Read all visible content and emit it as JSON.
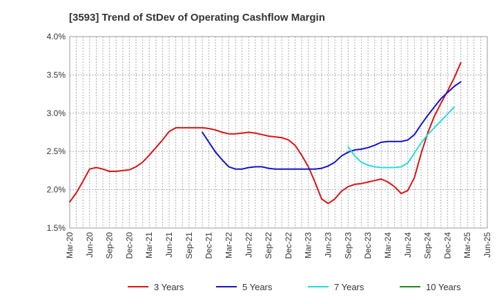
{
  "chart_data": {
    "type": "line",
    "title": "[3593]  Trend of StDev of Operating Cashflow Margin",
    "xlabel": "",
    "ylabel": "",
    "ylim": [
      1.5,
      4.0
    ],
    "y_ticks": [
      "1.5%",
      "2.0%",
      "2.5%",
      "3.0%",
      "3.5%",
      "4.0%"
    ],
    "y_tick_values": [
      1.5,
      2.0,
      2.5,
      3.0,
      3.5,
      4.0
    ],
    "x_ticks": [
      "Mar-20",
      "Jun-20",
      "Sep-20",
      "Dec-20",
      "Mar-21",
      "Jun-21",
      "Sep-21",
      "Dec-21",
      "Mar-22",
      "Jun-22",
      "Sep-22",
      "Dec-22",
      "Mar-23",
      "Jun-23",
      "Sep-23",
      "Dec-23",
      "Mar-24",
      "Jun-24",
      "Sep-24",
      "Dec-24",
      "Mar-25",
      "Jun-25"
    ],
    "grid": true,
    "legend_position": "bottom",
    "series": [
      {
        "name": "3 Years",
        "color": "#dd1111",
        "points": [
          [
            "Mar-20",
            1.84
          ],
          [
            "Apr-20",
            1.96
          ],
          [
            "May-20",
            2.11
          ],
          [
            "Jun-20",
            2.27
          ],
          [
            "Jul-20",
            2.29
          ],
          [
            "Aug-20",
            2.27
          ],
          [
            "Sep-20",
            2.24
          ],
          [
            "Oct-20",
            2.24
          ],
          [
            "Nov-20",
            2.25
          ],
          [
            "Dec-20",
            2.26
          ],
          [
            "Jan-21",
            2.3
          ],
          [
            "Feb-21",
            2.36
          ],
          [
            "Mar-21",
            2.45
          ],
          [
            "Apr-21",
            2.55
          ],
          [
            "May-21",
            2.65
          ],
          [
            "Jun-21",
            2.76
          ],
          [
            "Jul-21",
            2.81
          ],
          [
            "Aug-21",
            2.81
          ],
          [
            "Sep-21",
            2.81
          ],
          [
            "Oct-21",
            2.81
          ],
          [
            "Nov-21",
            2.81
          ],
          [
            "Dec-21",
            2.8
          ],
          [
            "Jan-22",
            2.78
          ],
          [
            "Feb-22",
            2.75
          ],
          [
            "Mar-22",
            2.73
          ],
          [
            "Apr-22",
            2.73
          ],
          [
            "May-22",
            2.74
          ],
          [
            "Jun-22",
            2.75
          ],
          [
            "Jul-22",
            2.74
          ],
          [
            "Aug-22",
            2.72
          ],
          [
            "Sep-22",
            2.7
          ],
          [
            "Oct-22",
            2.69
          ],
          [
            "Nov-22",
            2.68
          ],
          [
            "Dec-22",
            2.65
          ],
          [
            "Jan-23",
            2.58
          ],
          [
            "Feb-23",
            2.45
          ],
          [
            "Mar-23",
            2.3
          ],
          [
            "Apr-23",
            2.1
          ],
          [
            "May-23",
            1.88
          ],
          [
            "Jun-23",
            1.82
          ],
          [
            "Jul-23",
            1.88
          ],
          [
            "Aug-23",
            1.98
          ],
          [
            "Sep-23",
            2.04
          ],
          [
            "Oct-23",
            2.07
          ],
          [
            "Nov-23",
            2.08
          ],
          [
            "Dec-23",
            2.1
          ],
          [
            "Jan-24",
            2.12
          ],
          [
            "Feb-24",
            2.14
          ],
          [
            "Mar-24",
            2.1
          ],
          [
            "Apr-24",
            2.04
          ],
          [
            "May-24",
            1.95
          ],
          [
            "Jun-24",
            1.99
          ],
          [
            "Jul-24",
            2.16
          ],
          [
            "Aug-24",
            2.47
          ],
          [
            "Sep-24",
            2.74
          ],
          [
            "Oct-24",
            2.96
          ],
          [
            "Nov-24",
            3.13
          ],
          [
            "Dec-24",
            3.29
          ],
          [
            "Jan-25",
            3.46
          ],
          [
            "Feb-25",
            3.66
          ]
        ]
      },
      {
        "name": "5 Years",
        "color": "#1111cc",
        "points": [
          [
            "Nov-21",
            2.75
          ],
          [
            "Dec-21",
            2.62
          ],
          [
            "Jan-22",
            2.49
          ],
          [
            "Feb-22",
            2.39
          ],
          [
            "Mar-22",
            2.3
          ],
          [
            "Apr-22",
            2.27
          ],
          [
            "May-22",
            2.27
          ],
          [
            "Jun-22",
            2.29
          ],
          [
            "Jul-22",
            2.3
          ],
          [
            "Aug-22",
            2.3
          ],
          [
            "Sep-22",
            2.28
          ],
          [
            "Oct-22",
            2.27
          ],
          [
            "Nov-22",
            2.27
          ],
          [
            "Dec-22",
            2.27
          ],
          [
            "Jan-23",
            2.27
          ],
          [
            "Feb-23",
            2.27
          ],
          [
            "Mar-23",
            2.27
          ],
          [
            "Apr-23",
            2.27
          ],
          [
            "May-23",
            2.28
          ],
          [
            "Jun-23",
            2.31
          ],
          [
            "Jul-23",
            2.36
          ],
          [
            "Aug-23",
            2.44
          ],
          [
            "Sep-23",
            2.49
          ],
          [
            "Oct-23",
            2.52
          ],
          [
            "Nov-23",
            2.53
          ],
          [
            "Dec-23",
            2.55
          ],
          [
            "Jan-24",
            2.58
          ],
          [
            "Feb-24",
            2.62
          ],
          [
            "Mar-24",
            2.63
          ],
          [
            "Apr-24",
            2.63
          ],
          [
            "May-24",
            2.63
          ],
          [
            "Jun-24",
            2.65
          ],
          [
            "Jul-24",
            2.72
          ],
          [
            "Aug-24",
            2.85
          ],
          [
            "Sep-24",
            2.97
          ],
          [
            "Oct-24",
            3.08
          ],
          [
            "Nov-24",
            3.19
          ],
          [
            "Dec-24",
            3.27
          ],
          [
            "Jan-25",
            3.35
          ],
          [
            "Feb-25",
            3.41
          ]
        ]
      },
      {
        "name": "7 Years",
        "color": "#22dddd",
        "points": [
          [
            "Sep-23",
            2.56
          ],
          [
            "Oct-23",
            2.44
          ],
          [
            "Nov-23",
            2.36
          ],
          [
            "Dec-23",
            2.32
          ],
          [
            "Jan-24",
            2.3
          ],
          [
            "Feb-24",
            2.29
          ],
          [
            "Mar-24",
            2.29
          ],
          [
            "Apr-24",
            2.29
          ],
          [
            "May-24",
            2.3
          ],
          [
            "Jun-24",
            2.35
          ],
          [
            "Jul-24",
            2.48
          ],
          [
            "Aug-24",
            2.61
          ],
          [
            "Sep-24",
            2.72
          ],
          [
            "Oct-24",
            2.81
          ],
          [
            "Nov-24",
            2.9
          ],
          [
            "Dec-24",
            2.99
          ],
          [
            "Jan-25",
            3.08
          ]
        ]
      },
      {
        "name": "10 Years",
        "color": "#228822",
        "points": []
      }
    ]
  }
}
